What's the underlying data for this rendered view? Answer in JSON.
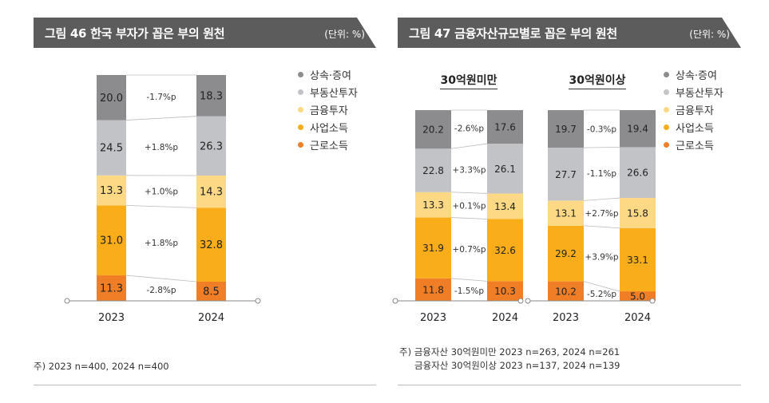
{
  "panels": [
    {
      "figure_title": "그림 46  한국 부자가 꼽은 부의 원천",
      "unit": "(단위: %)",
      "footnote": "주) 2023 n=400, 2024 n=400"
    },
    {
      "figure_title": "그림 47  금융자산규모별로 꼽은 부의 원천",
      "unit": "(단위: %)",
      "footnote_line1": "주) 금융자산 30억원미만 2023 n=263, 2024 n=261",
      "footnote_line2": "금융자산 30억원이상 2023 n=137, 2024 n=139"
    }
  ],
  "legend": [
    {
      "label": "상속·증여",
      "color": "#8c8c8e"
    },
    {
      "label": "부동산투자",
      "color": "#c2c3c6"
    },
    {
      "label": "금융투자",
      "color": "#fdd986"
    },
    {
      "label": "사업소득",
      "color": "#f9ad1b"
    },
    {
      "label": "근로소득",
      "color": "#f07e26"
    }
  ],
  "chart_data": [
    {
      "type": "stacked_bar",
      "title": "",
      "categories": [
        "2023",
        "2024"
      ],
      "series": [
        {
          "name": "근로소득",
          "values": [
            11.3,
            8.5
          ],
          "color": "#f07e26"
        },
        {
          "name": "사업소득",
          "values": [
            31.0,
            32.8
          ],
          "color": "#f9ad1b"
        },
        {
          "name": "금융투자",
          "values": [
            13.3,
            14.3
          ],
          "color": "#fdd986"
        },
        {
          "name": "부동산투자",
          "values": [
            24.5,
            26.3
          ],
          "color": "#c2c3c6"
        },
        {
          "name": "상속·증여",
          "values": [
            20.0,
            18.3
          ],
          "color": "#8c8c8e"
        }
      ],
      "changes": [
        "-2.8%p",
        "+1.8%p",
        "+1.0%p",
        "+1.8%p",
        "-1.7%p"
      ]
    },
    {
      "type": "stacked_bar",
      "title": "30억원미만",
      "categories": [
        "2023",
        "2024"
      ],
      "series": [
        {
          "name": "근로소득",
          "values": [
            11.8,
            10.3
          ],
          "color": "#f07e26"
        },
        {
          "name": "사업소득",
          "values": [
            31.9,
            32.6
          ],
          "color": "#f9ad1b"
        },
        {
          "name": "금융투자",
          "values": [
            13.3,
            13.4
          ],
          "color": "#fdd986"
        },
        {
          "name": "부동산투자",
          "values": [
            22.8,
            26.1
          ],
          "color": "#c2c3c6"
        },
        {
          "name": "상속·증여",
          "values": [
            20.2,
            17.6
          ],
          "color": "#8c8c8e"
        }
      ],
      "changes": [
        "-1.5%p",
        "+0.7%p",
        "+0.1%p",
        "+3.3%p",
        "-2.6%p"
      ]
    },
    {
      "type": "stacked_bar",
      "title": "30억원이상",
      "categories": [
        "2023",
        "2024"
      ],
      "series": [
        {
          "name": "근로소득",
          "values": [
            10.2,
            5.0
          ],
          "color": "#f07e26"
        },
        {
          "name": "사업소득",
          "values": [
            29.2,
            33.1
          ],
          "color": "#f9ad1b"
        },
        {
          "name": "금융투자",
          "values": [
            13.1,
            15.8
          ],
          "color": "#fdd986"
        },
        {
          "name": "부동산투자",
          "values": [
            27.7,
            26.6
          ],
          "color": "#c2c3c6"
        },
        {
          "name": "상속·증여",
          "values": [
            19.7,
            19.4
          ],
          "color": "#8c8c8e"
        }
      ],
      "changes": [
        "-5.2%p",
        "+3.9%p",
        "+2.7%p",
        "-1.1%p",
        "-0.3%p"
      ]
    }
  ]
}
